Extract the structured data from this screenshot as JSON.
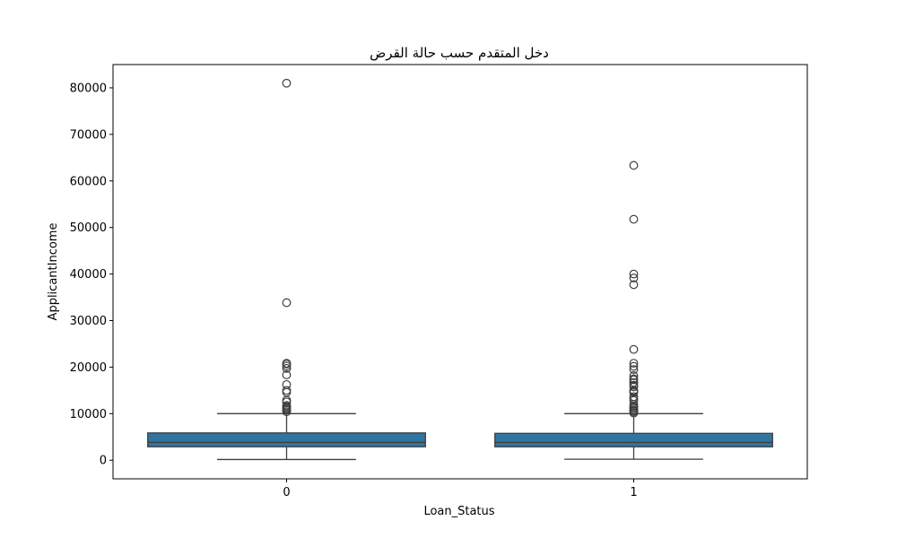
{
  "chart_data": {
    "type": "box",
    "title": "دخل المتقدم حسب حالة القرض",
    "xlabel": "Loan_Status",
    "ylabel": "ApplicantIncome",
    "ylim": [
      -4000,
      85000
    ],
    "yticks": [
      0,
      10000,
      20000,
      30000,
      40000,
      50000,
      60000,
      70000,
      80000
    ],
    "grid": false,
    "box_color": "#3274a1",
    "line_color": "#3f3f3f",
    "categories": [
      "0",
      "1"
    ],
    "boxes": [
      {
        "category": "0",
        "whisker_low": 150,
        "q1": 2885,
        "median": 3834,
        "q3": 5861,
        "whisker_high": 10000,
        "outliers": [
          81000,
          33846,
          20833,
          20667,
          20233,
          19730,
          18333,
          16250,
          15000,
          14583,
          12876,
          12500,
          11757,
          11500,
          11250,
          11000,
          10750,
          10408
        ]
      },
      {
        "category": "1",
        "whisker_low": 210,
        "q1": 2877,
        "median": 3812,
        "q3": 5771,
        "whisker_high": 10000,
        "outliers": [
          63337,
          51763,
          39999,
          39147,
          37719,
          23803,
          20833,
          20166,
          19484,
          18165,
          17500,
          17263,
          16692,
          16666,
          16120,
          15759,
          15000,
          14880,
          14683,
          14583,
          13650,
          13262,
          12841,
          12000,
          11500,
          11417,
          11146,
          10833,
          10750,
          10513,
          10416,
          10139
        ]
      }
    ]
  }
}
